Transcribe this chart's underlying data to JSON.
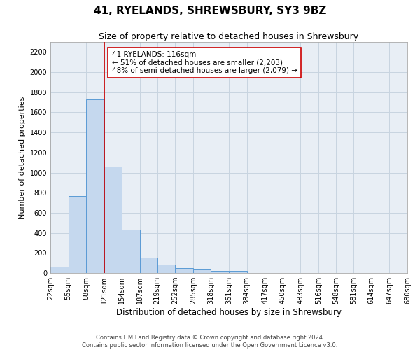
{
  "title": "41, RYELANDS, SHREWSBURY, SY3 9BZ",
  "subtitle": "Size of property relative to detached houses in Shrewsbury",
  "xlabel": "Distribution of detached houses by size in Shrewsbury",
  "ylabel": "Number of detached properties",
  "footer_lines": [
    "Contains HM Land Registry data © Crown copyright and database right 2024.",
    "Contains public sector information licensed under the Open Government Licence v3.0."
  ],
  "bar_edges": [
    22,
    55,
    88,
    121,
    154,
    187,
    219,
    252,
    285,
    318,
    351,
    384,
    417,
    450,
    483,
    516,
    548,
    581,
    614,
    647,
    680
  ],
  "bar_heights": [
    60,
    770,
    1730,
    1060,
    430,
    150,
    85,
    50,
    35,
    20,
    20,
    0,
    0,
    0,
    0,
    0,
    0,
    0,
    0,
    0
  ],
  "bar_color": "#c5d8ee",
  "bar_edgecolor": "#5b9bd5",
  "bar_linewidth": 0.7,
  "vline_x": 121,
  "vline_color": "#cc0000",
  "vline_linewidth": 1.2,
  "annotation_text": "41 RYELANDS: 116sqm\n← 51% of detached houses are smaller (2,203)\n48% of semi-detached houses are larger (2,079) →",
  "annotation_box_edgecolor": "#cc0000",
  "annotation_box_facecolor": "white",
  "annotation_fontsize": 7.5,
  "ylim": [
    0,
    2300
  ],
  "xlim": [
    22,
    680
  ],
  "yticks": [
    0,
    200,
    400,
    600,
    800,
    1000,
    1200,
    1400,
    1600,
    1800,
    2000,
    2200
  ],
  "xtick_labels": [
    "22sqm",
    "55sqm",
    "88sqm",
    "121sqm",
    "154sqm",
    "187sqm",
    "219sqm",
    "252sqm",
    "285sqm",
    "318sqm",
    "351sqm",
    "384sqm",
    "417sqm",
    "450sqm",
    "483sqm",
    "516sqm",
    "548sqm",
    "581sqm",
    "614sqm",
    "647sqm",
    "680sqm"
  ],
  "xtick_positions": [
    22,
    55,
    88,
    121,
    154,
    187,
    219,
    252,
    285,
    318,
    351,
    384,
    417,
    450,
    483,
    516,
    548,
    581,
    614,
    647,
    680
  ],
  "grid_color": "#c8d4e0",
  "background_color": "#e8eef5",
  "title_fontsize": 11,
  "subtitle_fontsize": 9,
  "axis_label_fontsize": 8.5,
  "tick_fontsize": 7,
  "ylabel_fontsize": 8
}
